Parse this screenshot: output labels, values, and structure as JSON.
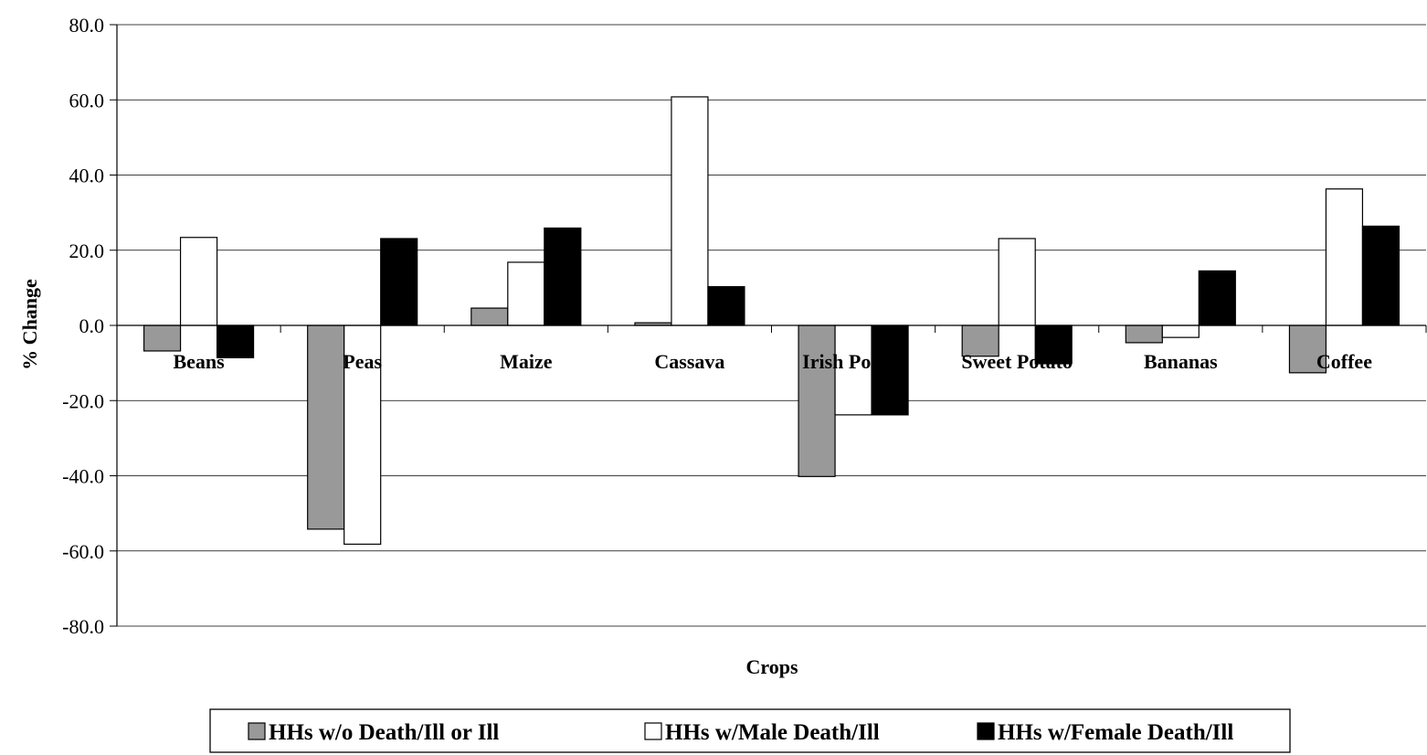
{
  "chart_data": {
    "type": "bar",
    "title": "",
    "xlabel": "Crops",
    "ylabel": "% Change",
    "ylim": [
      -80,
      80
    ],
    "ytick_step": 20,
    "yticks": [
      "80.0",
      "60.0",
      "40.0",
      "20.0",
      "0.0",
      "-20.0",
      "-40.0",
      "-60.0",
      "-80.0"
    ],
    "grid": true,
    "legend_position": "bottom",
    "categories": [
      "Beans",
      "Peas",
      "Maize",
      "Cassava",
      "Irish Potato",
      "Sweet Potato",
      "Bananas",
      "Coffee"
    ],
    "series": [
      {
        "name": "HHs w/o Death/Ill or Ill",
        "color": "#999999",
        "values": [
          -6.8,
          -54.2,
          4.6,
          0.7,
          -40.2,
          -8.2,
          -4.6,
          -12.6
        ]
      },
      {
        "name": "HHs w/Male Death/Ill",
        "color": "#ffffff",
        "values": [
          23.4,
          -58.2,
          16.8,
          60.8,
          -23.8,
          23.1,
          -3.2,
          36.3
        ]
      },
      {
        "name": "HHs w/Female Death/Ill",
        "color": "#000000",
        "values": [
          -8.6,
          23.1,
          25.9,
          10.3,
          -23.8,
          -10.2,
          14.5,
          26.4
        ]
      }
    ]
  }
}
